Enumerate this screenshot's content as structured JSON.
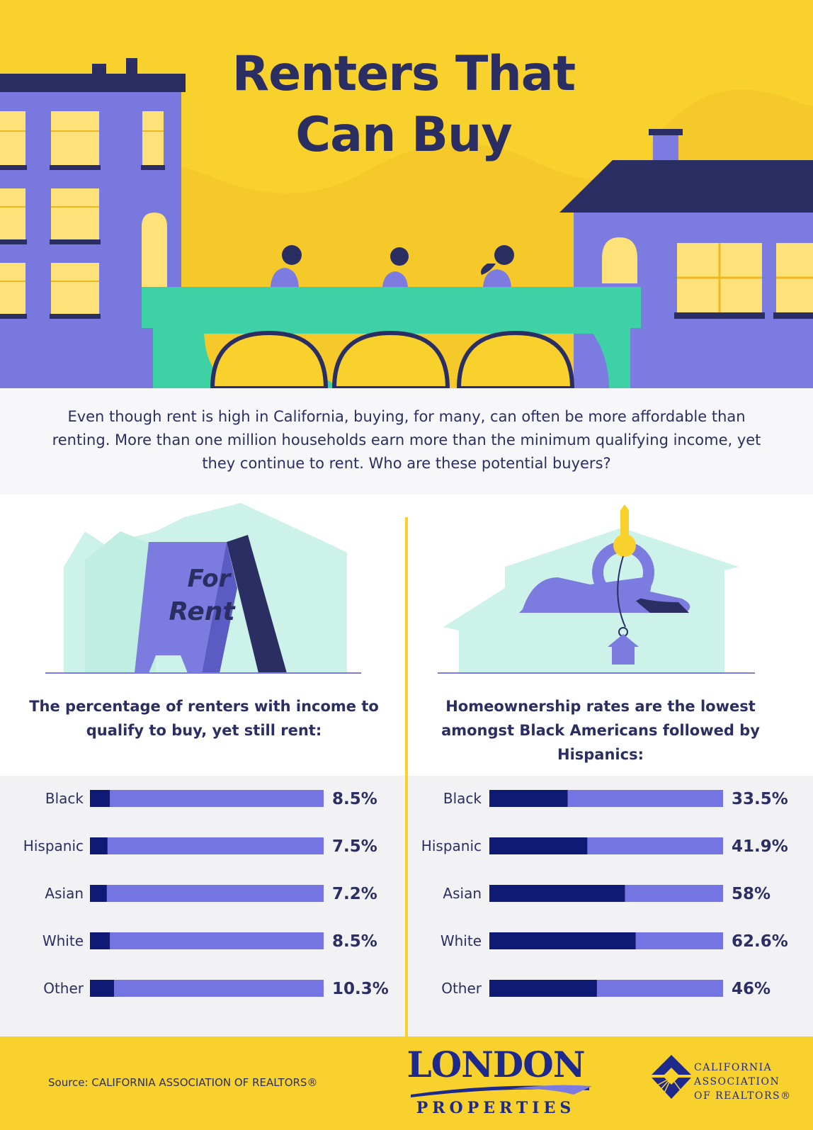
{
  "hero": {
    "title_line1": "Renters That",
    "title_line2": "Can Buy"
  },
  "intro": {
    "text": "Even though rent is high in California, buying, for many, can often be more affordable than renting. More than one million households earn more than the minimum qualifying income, yet they continue to rent.  Who are these potential buyers?"
  },
  "left_panel": {
    "sign_line1": "For",
    "sign_line2": "Rent",
    "heading": "The percentage of renters with income to qualify to buy, yet still rent:"
  },
  "right_panel": {
    "heading": "Homeownership rates are the lowest amongst Black Americans followed by Hispanics:"
  },
  "colors": {
    "yellow": "#f9d12d",
    "navy": "#2b2e63",
    "dark_bar": "#0f1a75",
    "light_bar": "#7474e3",
    "mint": "#cdf2e9"
  },
  "chart_data": [
    {
      "type": "bar",
      "orientation": "horizontal",
      "categories": [
        "Black",
        "Hispanic",
        "Asian",
        "White",
        "Other"
      ],
      "values": [
        8.5,
        7.5,
        7.2,
        8.5,
        10.3
      ],
      "value_labels": [
        "8.5%",
        "7.5%",
        "7.2%",
        "8.5%",
        "10.3%"
      ],
      "title": "The percentage of renters with income to qualify to buy, yet still rent:",
      "xlim": [
        0,
        100
      ]
    },
    {
      "type": "bar",
      "orientation": "horizontal",
      "categories": [
        "Black",
        "Hispanic",
        "Asian",
        "White",
        "Other"
      ],
      "values": [
        33.5,
        41.9,
        58,
        62.6,
        46
      ],
      "value_labels": [
        "33.5%",
        "41.9%",
        "58%",
        "62.6%",
        "46%"
      ],
      "title": "Homeownership rates are the lowest amongst Black Americans followed by Hispanics:",
      "xlim": [
        0,
        100
      ]
    }
  ],
  "footer": {
    "source": "Source: CALIFORNIA ASSOCIATION OF REALTORS®",
    "london_word": "LONDON",
    "properties_word": "PROPERTIES",
    "car_line1": "CALIFORNIA",
    "car_line2": "ASSOCIATION",
    "car_line3": "OF REALTORS®"
  }
}
